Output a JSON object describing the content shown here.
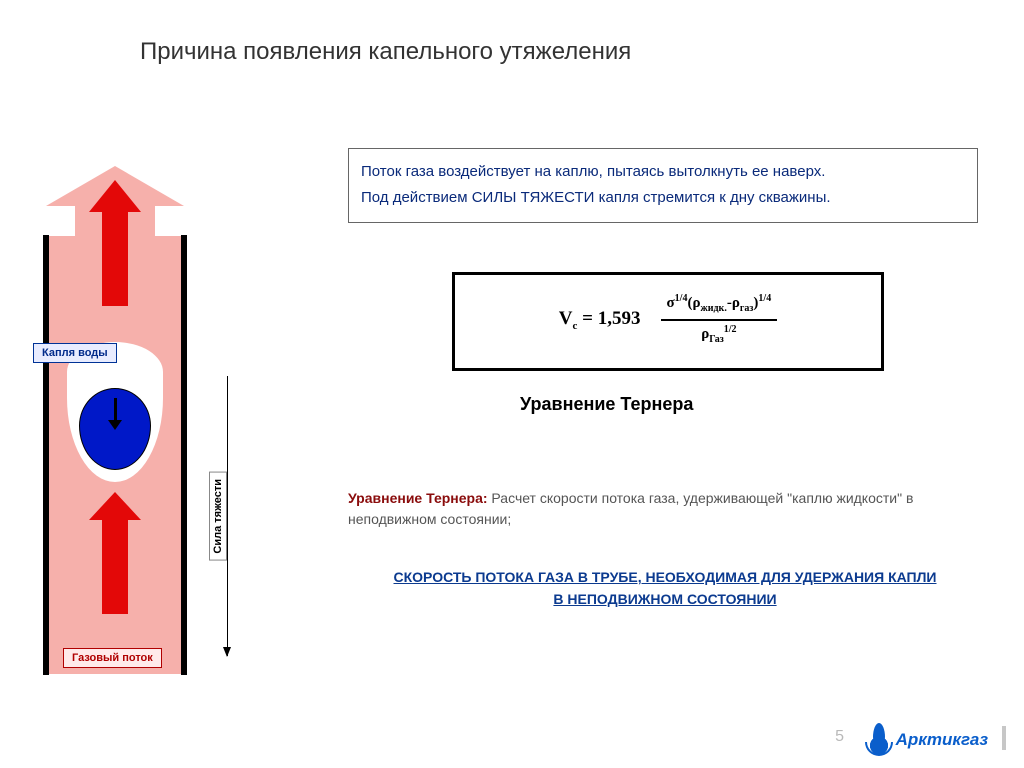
{
  "title": "Причина появления капельного утяжеления",
  "description": {
    "line1": "Поток газа воздействует на каплю, пытаясь вытолкнуть ее наверх.",
    "line2": "Под действием СИЛЫ ТЯЖЕСТИ капля стремится к дну скважины."
  },
  "diagram": {
    "water_label": "Капля воды",
    "gasflow_label": "Газовый поток",
    "gravity_label": "Сила тяжести",
    "colors": {
      "gas_fill": "#f6b0ab",
      "arrow_red": "#e30808",
      "drop_blue": "#0018c8",
      "pipe_black": "#000000"
    }
  },
  "formula": {
    "lhs_symbol": "V",
    "lhs_sub": "с",
    "equals": " = 1,593",
    "numerator_html": "σ<sup>1/4</sup>(ρ<sub>жидк.</sub>-ρ<sub>газ</sub>)<sup>1/4</sup>",
    "denominator_html": "ρ<sub>Газ</sub><sup>1/2</sup>",
    "caption": "Уравнение Тернера"
  },
  "turner_note": {
    "label": "Уравнение Тернера:",
    "text": "  Расчет скорости потока газа, удерживающей \"каплю жидкости\" в неподвижном состоянии;"
  },
  "speed_note": {
    "line1": "СКОРОСТЬ ПОТОКА ГАЗА В ТРУБЕ, НЕОБХОДИМАЯ ДЛЯ УДЕРЖАНИЯ КАПЛИ",
    "line2": "В НЕПОДВИЖНОМ СОСТОЯНИИ"
  },
  "footer": {
    "page": "5",
    "logo_text": "Арктикгаз",
    "logo_color": "#0a5ecb"
  }
}
